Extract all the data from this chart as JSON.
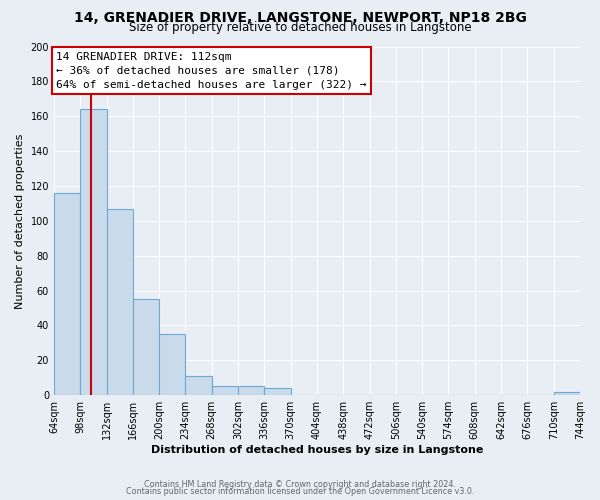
{
  "title": "14, GRENADIER DRIVE, LANGSTONE, NEWPORT, NP18 2BG",
  "subtitle": "Size of property relative to detached houses in Langstone",
  "xlabel": "Distribution of detached houses by size in Langstone",
  "ylabel": "Number of detached properties",
  "bin_edges": [
    64,
    98,
    132,
    166,
    200,
    234,
    268,
    302,
    336,
    370,
    404,
    438,
    472,
    506,
    540,
    574,
    608,
    642,
    676,
    710,
    744
  ],
  "bin_counts": [
    116,
    164,
    107,
    55,
    35,
    11,
    5,
    5,
    4,
    0,
    0,
    0,
    0,
    0,
    0,
    0,
    0,
    0,
    0,
    2
  ],
  "bar_color": "#c9daea",
  "bar_edge_color": "#6aaad4",
  "property_size": 112,
  "red_line_color": "#cc0000",
  "annotation_box_edge_color": "#cc0000",
  "annotation_text_line1": "14 GRENADIER DRIVE: 112sqm",
  "annotation_text_line2": "← 36% of detached houses are smaller (178)",
  "annotation_text_line3": "64% of semi-detached houses are larger (322) →",
  "ylim": [
    0,
    200
  ],
  "yticks": [
    0,
    20,
    40,
    60,
    80,
    100,
    120,
    140,
    160,
    180,
    200
  ],
  "tick_labels": [
    "64sqm",
    "98sqm",
    "132sqm",
    "166sqm",
    "200sqm",
    "234sqm",
    "268sqm",
    "302sqm",
    "336sqm",
    "370sqm",
    "404sqm",
    "438sqm",
    "472sqm",
    "506sqm",
    "540sqm",
    "574sqm",
    "608sqm",
    "642sqm",
    "676sqm",
    "710sqm",
    "744sqm"
  ],
  "footer_line1": "Contains HM Land Registry data © Crown copyright and database right 2024.",
  "footer_line2": "Contains public sector information licensed under the Open Government Licence v3.0.",
  "background_color": "#e8eef4",
  "plot_background": "#e8eef4",
  "grid_color": "#ffffff",
  "title_fontsize": 10,
  "subtitle_fontsize": 8.5,
  "xlabel_fontsize": 8,
  "ylabel_fontsize": 8,
  "tick_fontsize": 7,
  "annotation_fontsize": 8,
  "footer_fontsize": 5.8
}
